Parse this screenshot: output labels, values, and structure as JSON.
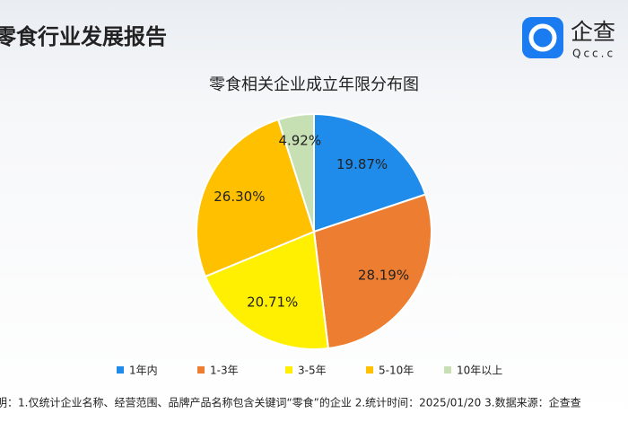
{
  "header": {
    "title": "零食行业发展报告",
    "logo_text": "企查",
    "logo_sub": "Qcc.c"
  },
  "chart_data": {
    "type": "pie",
    "title": "零食相关企业成立年限分布图",
    "categories": [
      "1年内",
      "1-3年",
      "3-5年",
      "5-10年",
      "10年以上"
    ],
    "values": [
      19.87,
      28.19,
      20.71,
      26.3,
      4.92
    ],
    "value_labels": [
      "19.87%",
      "28.19%",
      "20.71%",
      "26.30%",
      "4.92%"
    ],
    "colors": [
      "#1f8ceb",
      "#ed7d31",
      "#ffef00",
      "#ffc000",
      "#c6e0b4"
    ],
    "legend": "bottom"
  },
  "footer": {
    "note": "明：1.仅统计企业名称、经营范围、品牌产品名称包含关键词“零食”的企业  2.统计时间：2025/01/20   3.数据来源：企查查"
  }
}
